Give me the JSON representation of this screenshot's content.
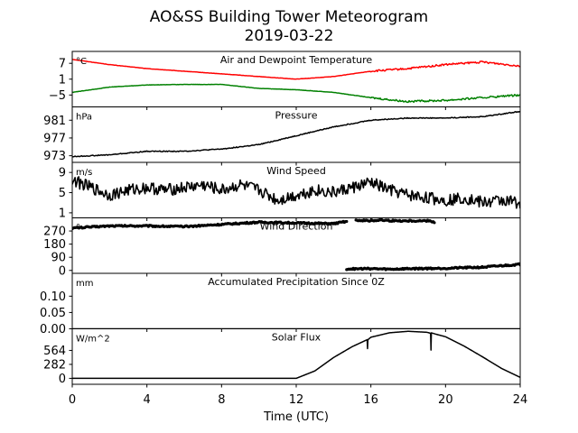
{
  "title": "AO&SS Building Tower Meteorogram",
  "subtitle": "2019-03-22",
  "x_axis": {
    "label": "Time (UTC)",
    "range": [
      0,
      24
    ],
    "ticks": [
      0,
      4,
      8,
      12,
      16,
      20,
      24
    ],
    "tick_labels": [
      "0",
      "4",
      "8",
      "12",
      "16",
      "20",
      "24"
    ]
  },
  "chart_data": [
    {
      "type": "line",
      "title": "Air and Dewpoint Temperature",
      "unit": "°C",
      "ylim": [
        -9.5,
        11.5
      ],
      "yticks": [
        -5,
        1,
        7
      ],
      "ytick_labels": [
        "−5",
        "1",
        "7"
      ],
      "colors": [
        "#ff0000",
        "#008000"
      ],
      "noise": 0.35,
      "noise_from": 16,
      "series": [
        {
          "x": [
            0,
            2,
            4,
            6,
            8,
            10,
            12,
            14,
            16,
            18,
            20,
            22,
            24
          ],
          "y": [
            8.5,
            6.5,
            5,
            4,
            3,
            2,
            1,
            2,
            4,
            5,
            6.5,
            7.5,
            6
          ]
        },
        {
          "x": [
            0,
            2,
            4,
            6,
            8,
            10,
            12,
            14,
            16,
            18,
            20,
            22,
            24
          ],
          "y": [
            -4,
            -2,
            -1.2,
            -1,
            -1,
            -2.5,
            -3,
            -4,
            -6,
            -7.5,
            -7,
            -6,
            -5
          ]
        }
      ]
    },
    {
      "type": "line",
      "title": "Pressure",
      "unit": "hPa",
      "ylim": [
        971.5,
        984
      ],
      "yticks": [
        973,
        977,
        981
      ],
      "ytick_labels": [
        "973",
        "977",
        "981"
      ],
      "colors": [
        "#000000"
      ],
      "noise": 0.1,
      "series": [
        {
          "x": [
            0,
            2,
            4,
            6,
            8,
            10,
            12,
            14,
            16,
            18,
            20,
            22,
            24
          ],
          "y": [
            972.8,
            973.2,
            974,
            974,
            974.5,
            975.5,
            977.5,
            979.5,
            981,
            981.5,
            981.5,
            981.8,
            983
          ]
        }
      ]
    },
    {
      "type": "line",
      "title": "Wind Speed",
      "unit": "m/s",
      "ylim": [
        0,
        11
      ],
      "yticks": [
        1,
        5,
        9
      ],
      "ytick_labels": [
        "1",
        "5",
        "9"
      ],
      "colors": [
        "#000000"
      ],
      "noise": 1.2,
      "series": [
        {
          "x": [
            0,
            1,
            2,
            3,
            4,
            5,
            6,
            7,
            8,
            9,
            10,
            11,
            12,
            13,
            14,
            15,
            16,
            17,
            18,
            19,
            20,
            21,
            22,
            23,
            24
          ],
          "y": [
            7.5,
            6,
            4.5,
            5.5,
            6,
            5.5,
            6,
            6.5,
            5.5,
            6.5,
            5.5,
            3.5,
            4.5,
            5.5,
            5,
            6,
            7,
            5.5,
            4.5,
            4,
            3.5,
            4,
            3,
            3.5,
            3
          ]
        }
      ]
    },
    {
      "type": "scatter",
      "title": "Wind Direction",
      "unit": "°",
      "ylim": [
        -20,
        360
      ],
      "yticks": [
        0,
        90,
        180,
        270
      ],
      "ytick_labels": [
        "0",
        "90",
        "180",
        "270"
      ],
      "colors": [
        "#000000"
      ],
      "noise": 5,
      "series": [
        {
          "x": [
            0,
            2,
            4,
            6,
            8,
            10,
            12,
            14,
            14.7
          ],
          "y": [
            290,
            305,
            305,
            300,
            315,
            330,
            325,
            320,
            335
          ]
        },
        {
          "x": [
            15.2,
            15.9,
            16.5,
            17.2,
            17.8,
            18.3,
            19.2,
            19.4
          ],
          "y": [
            345,
            340,
            345,
            340,
            340,
            340,
            340,
            330
          ]
        },
        {
          "x": [
            14.7,
            16,
            17,
            18,
            20,
            22,
            24
          ],
          "y": [
            10,
            12,
            8,
            12,
            15,
            22,
            42
          ]
        }
      ]
    },
    {
      "type": "line",
      "title": "Accumulated Precipitation Since 0Z",
      "unit": "mm",
      "ylim": [
        0,
        0.17
      ],
      "yticks": [
        0,
        0.05,
        0.1
      ],
      "ytick_labels": [
        "0.00",
        "0.05",
        "0.10"
      ],
      "colors": [
        "#000000"
      ],
      "noise": 0,
      "series": [
        {
          "x": [
            0,
            24
          ],
          "y": [
            0,
            0
          ]
        }
      ]
    },
    {
      "type": "line",
      "title": "Solar Flux",
      "unit": "W/m^2",
      "ylim": [
        -120,
        1000
      ],
      "yticks": [
        0,
        282,
        564
      ],
      "ytick_labels": [
        "0",
        "282",
        "564"
      ],
      "colors": [
        "#000000"
      ],
      "noise": 0,
      "series": [
        {
          "x": [
            0,
            12,
            13,
            14,
            15,
            15.8,
            15.82,
            15.84,
            16,
            17,
            18,
            19,
            19.2,
            19.21,
            19.23,
            19.5,
            20,
            21,
            22,
            23,
            24
          ],
          "y": [
            0,
            0,
            150,
            420,
            640,
            780,
            600,
            780,
            830,
            920,
            950,
            930,
            910,
            220,
            920,
            890,
            840,
            650,
            430,
            200,
            20
          ]
        }
      ]
    }
  ]
}
